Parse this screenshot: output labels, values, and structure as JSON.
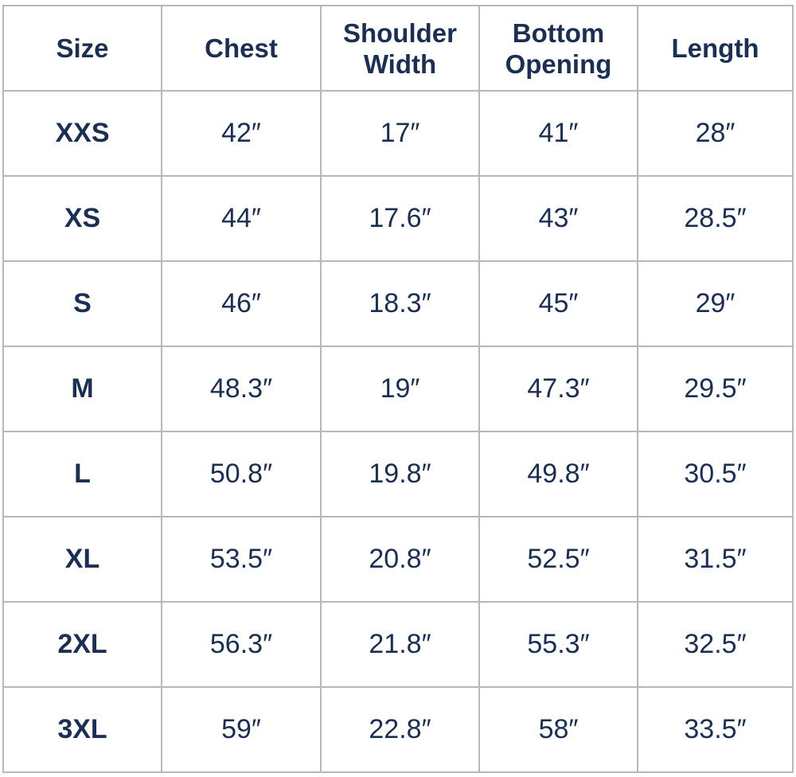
{
  "table": {
    "headers": [
      "Size",
      "Chest",
      "Shoulder Width",
      "Bottom Opening",
      "Length"
    ],
    "rows": [
      [
        "XXS",
        "42″",
        "17″",
        "41″",
        "28″"
      ],
      [
        "XS",
        "44″",
        "17.6″",
        "43″",
        "28.5″"
      ],
      [
        "S",
        "46″",
        "18.3″",
        "45″",
        "29″"
      ],
      [
        "M",
        "48.3″",
        "19″",
        "47.3″",
        "29.5″"
      ],
      [
        "L",
        "50.8″",
        "19.8″",
        "49.8″",
        "30.5″"
      ],
      [
        "XL",
        "53.5″",
        "20.8″",
        "52.5″",
        "31.5″"
      ],
      [
        "2XL",
        "56.3″",
        "21.8″",
        "55.3″",
        "32.5″"
      ],
      [
        "3XL",
        "59″",
        "22.8″",
        "58″",
        "33.5″"
      ]
    ]
  },
  "colors": {
    "text": "#1b2f55",
    "border": "#b8b8b8"
  }
}
